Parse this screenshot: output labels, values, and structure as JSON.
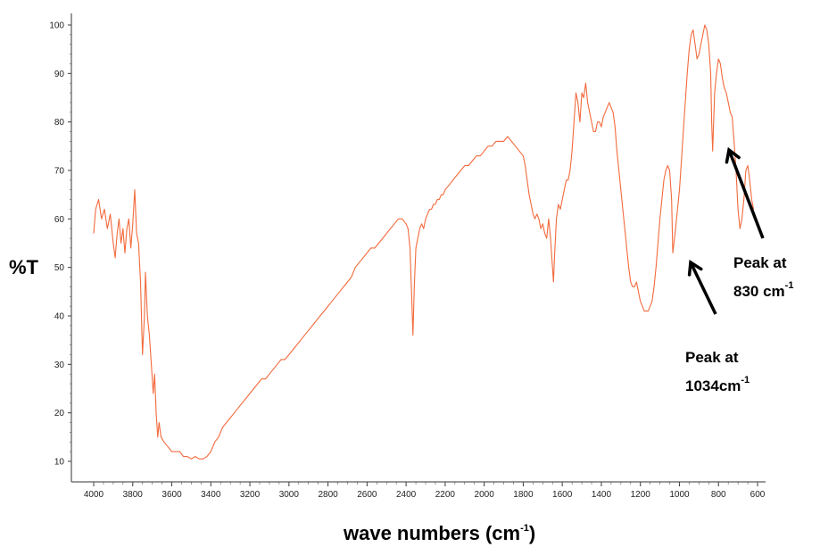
{
  "chart_data": {
    "type": "line",
    "title": "",
    "xlabel_main": "wave numbers (cm",
    "xlabel_sup": "-1",
    "xlabel_end": ")",
    "ylabel": "%T",
    "xlim": [
      4000,
      600
    ],
    "ylim": [
      10,
      100
    ],
    "x_ticks": [
      4000,
      3800,
      3600,
      3400,
      3200,
      3000,
      2800,
      2600,
      2400,
      2200,
      2000,
      1800,
      1600,
      1400,
      1200,
      1000,
      800,
      600
    ],
    "y_ticks": [
      10,
      20,
      30,
      40,
      50,
      60,
      70,
      80,
      90,
      100
    ],
    "grid": false,
    "series": [
      {
        "color": "#f26a3d",
        "points": [
          [
            4000,
            57
          ],
          [
            3990,
            62
          ],
          [
            3975,
            64
          ],
          [
            3960,
            60
          ],
          [
            3945,
            62
          ],
          [
            3930,
            58
          ],
          [
            3915,
            61
          ],
          [
            3900,
            55
          ],
          [
            3890,
            52
          ],
          [
            3880,
            57
          ],
          [
            3870,
            60
          ],
          [
            3860,
            55
          ],
          [
            3850,
            58
          ],
          [
            3840,
            53
          ],
          [
            3830,
            58
          ],
          [
            3820,
            60
          ],
          [
            3810,
            54
          ],
          [
            3800,
            59
          ],
          [
            3790,
            66
          ],
          [
            3780,
            57
          ],
          [
            3770,
            55
          ],
          [
            3760,
            47
          ],
          [
            3750,
            32
          ],
          [
            3740,
            40
          ],
          [
            3735,
            49
          ],
          [
            3725,
            40
          ],
          [
            3715,
            36
          ],
          [
            3705,
            30
          ],
          [
            3695,
            24
          ],
          [
            3688,
            28
          ],
          [
            3680,
            20
          ],
          [
            3672,
            15
          ],
          [
            3665,
            18
          ],
          [
            3655,
            15
          ],
          [
            3640,
            14
          ],
          [
            3620,
            13
          ],
          [
            3600,
            12
          ],
          [
            3580,
            12
          ],
          [
            3560,
            12
          ],
          [
            3540,
            11
          ],
          [
            3520,
            11
          ],
          [
            3500,
            10.5
          ],
          [
            3480,
            11
          ],
          [
            3460,
            10.5
          ],
          [
            3440,
            10.5
          ],
          [
            3420,
            11
          ],
          [
            3400,
            12
          ],
          [
            3380,
            14
          ],
          [
            3360,
            15
          ],
          [
            3340,
            17
          ],
          [
            3320,
            18
          ],
          [
            3300,
            19
          ],
          [
            3280,
            20
          ],
          [
            3260,
            21
          ],
          [
            3240,
            22
          ],
          [
            3220,
            23
          ],
          [
            3200,
            24
          ],
          [
            3180,
            25
          ],
          [
            3160,
            26
          ],
          [
            3140,
            27
          ],
          [
            3120,
            27
          ],
          [
            3100,
            28
          ],
          [
            3080,
            29
          ],
          [
            3060,
            30
          ],
          [
            3040,
            31
          ],
          [
            3020,
            31
          ],
          [
            3000,
            32
          ],
          [
            2980,
            33
          ],
          [
            2960,
            34
          ],
          [
            2940,
            35
          ],
          [
            2920,
            36
          ],
          [
            2900,
            37
          ],
          [
            2880,
            38
          ],
          [
            2860,
            39
          ],
          [
            2840,
            40
          ],
          [
            2820,
            41
          ],
          [
            2800,
            42
          ],
          [
            2780,
            43
          ],
          [
            2760,
            44
          ],
          [
            2740,
            45
          ],
          [
            2720,
            46
          ],
          [
            2700,
            47
          ],
          [
            2680,
            48
          ],
          [
            2660,
            50
          ],
          [
            2640,
            51
          ],
          [
            2620,
            52
          ],
          [
            2600,
            53
          ],
          [
            2580,
            54
          ],
          [
            2560,
            54
          ],
          [
            2540,
            55
          ],
          [
            2520,
            56
          ],
          [
            2500,
            57
          ],
          [
            2480,
            58
          ],
          [
            2460,
            59
          ],
          [
            2440,
            60
          ],
          [
            2420,
            60
          ],
          [
            2400,
            59
          ],
          [
            2390,
            58
          ],
          [
            2380,
            54
          ],
          [
            2372,
            45
          ],
          [
            2365,
            36
          ],
          [
            2358,
            46
          ],
          [
            2350,
            54
          ],
          [
            2340,
            56
          ],
          [
            2330,
            58
          ],
          [
            2320,
            59
          ],
          [
            2310,
            58
          ],
          [
            2300,
            60
          ],
          [
            2290,
            61
          ],
          [
            2280,
            62
          ],
          [
            2270,
            62
          ],
          [
            2260,
            63
          ],
          [
            2250,
            63
          ],
          [
            2240,
            64
          ],
          [
            2230,
            64
          ],
          [
            2220,
            65
          ],
          [
            2210,
            65
          ],
          [
            2200,
            66
          ],
          [
            2180,
            67
          ],
          [
            2160,
            68
          ],
          [
            2140,
            69
          ],
          [
            2120,
            70
          ],
          [
            2100,
            71
          ],
          [
            2080,
            71
          ],
          [
            2060,
            72
          ],
          [
            2040,
            73
          ],
          [
            2020,
            73
          ],
          [
            2000,
            74
          ],
          [
            1980,
            75
          ],
          [
            1960,
            75
          ],
          [
            1940,
            76
          ],
          [
            1920,
            76
          ],
          [
            1900,
            76
          ],
          [
            1880,
            77
          ],
          [
            1860,
            76
          ],
          [
            1840,
            75
          ],
          [
            1820,
            74
          ],
          [
            1800,
            73
          ],
          [
            1790,
            71
          ],
          [
            1780,
            68
          ],
          [
            1770,
            65
          ],
          [
            1760,
            63
          ],
          [
            1750,
            61
          ],
          [
            1740,
            60
          ],
          [
            1730,
            61
          ],
          [
            1720,
            60
          ],
          [
            1710,
            58
          ],
          [
            1700,
            59
          ],
          [
            1690,
            57
          ],
          [
            1680,
            56
          ],
          [
            1670,
            60
          ],
          [
            1660,
            56
          ],
          [
            1650,
            50
          ],
          [
            1645,
            47
          ],
          [
            1640,
            52
          ],
          [
            1630,
            60
          ],
          [
            1620,
            63
          ],
          [
            1610,
            62
          ],
          [
            1600,
            64
          ],
          [
            1590,
            66
          ],
          [
            1580,
            68
          ],
          [
            1570,
            68
          ],
          [
            1560,
            70
          ],
          [
            1550,
            74
          ],
          [
            1540,
            80
          ],
          [
            1530,
            86
          ],
          [
            1520,
            84
          ],
          [
            1510,
            80
          ],
          [
            1500,
            86
          ],
          [
            1490,
            85
          ],
          [
            1480,
            88
          ],
          [
            1470,
            84
          ],
          [
            1460,
            82
          ],
          [
            1450,
            80
          ],
          [
            1440,
            78
          ],
          [
            1430,
            78
          ],
          [
            1420,
            80
          ],
          [
            1410,
            80
          ],
          [
            1400,
            79
          ],
          [
            1390,
            81
          ],
          [
            1380,
            82
          ],
          [
            1370,
            83
          ],
          [
            1360,
            84
          ],
          [
            1350,
            83
          ],
          [
            1340,
            82
          ],
          [
            1330,
            79
          ],
          [
            1320,
            74
          ],
          [
            1310,
            70
          ],
          [
            1300,
            66
          ],
          [
            1290,
            62
          ],
          [
            1280,
            58
          ],
          [
            1270,
            54
          ],
          [
            1260,
            50
          ],
          [
            1250,
            47
          ],
          [
            1240,
            46
          ],
          [
            1230,
            46
          ],
          [
            1220,
            47
          ],
          [
            1210,
            45
          ],
          [
            1200,
            43
          ],
          [
            1190,
            42
          ],
          [
            1180,
            41
          ],
          [
            1170,
            41
          ],
          [
            1160,
            41
          ],
          [
            1150,
            42
          ],
          [
            1140,
            43
          ],
          [
            1130,
            46
          ],
          [
            1120,
            50
          ],
          [
            1110,
            55
          ],
          [
            1100,
            60
          ],
          [
            1090,
            64
          ],
          [
            1080,
            68
          ],
          [
            1070,
            70
          ],
          [
            1060,
            71
          ],
          [
            1050,
            70
          ],
          [
            1040,
            64
          ],
          [
            1034,
            53
          ],
          [
            1028,
            55
          ],
          [
            1020,
            58
          ],
          [
            1010,
            62
          ],
          [
            1000,
            66
          ],
          [
            990,
            72
          ],
          [
            980,
            78
          ],
          [
            970,
            84
          ],
          [
            960,
            90
          ],
          [
            950,
            95
          ],
          [
            940,
            98
          ],
          [
            930,
            99
          ],
          [
            920,
            96
          ],
          [
            910,
            93
          ],
          [
            900,
            94
          ],
          [
            890,
            96
          ],
          [
            880,
            98
          ],
          [
            870,
            100
          ],
          [
            860,
            99
          ],
          [
            850,
            96
          ],
          [
            840,
            90
          ],
          [
            835,
            80
          ],
          [
            830,
            74
          ],
          [
            825,
            80
          ],
          [
            820,
            86
          ],
          [
            810,
            90
          ],
          [
            800,
            93
          ],
          [
            790,
            92
          ],
          [
            780,
            89
          ],
          [
            770,
            87
          ],
          [
            760,
            86
          ],
          [
            750,
            84
          ],
          [
            740,
            82
          ],
          [
            730,
            81
          ],
          [
            720,
            76
          ],
          [
            710,
            70
          ],
          [
            700,
            62
          ],
          [
            690,
            58
          ],
          [
            680,
            60
          ],
          [
            670,
            64
          ],
          [
            660,
            70
          ],
          [
            650,
            71
          ],
          [
            640,
            68
          ],
          [
            630,
            64
          ],
          [
            620,
            62
          ]
        ]
      }
    ],
    "annotations": [
      {
        "line1": "Peak at",
        "line2_main": "830 cm",
        "line2_sup": "-1",
        "target_x": 830,
        "target_y": 76
      },
      {
        "line1": "Peak at",
        "line2_main": "1034cm",
        "line2_sup": "-1",
        "target_x": 1034,
        "target_y": 52
      }
    ]
  }
}
